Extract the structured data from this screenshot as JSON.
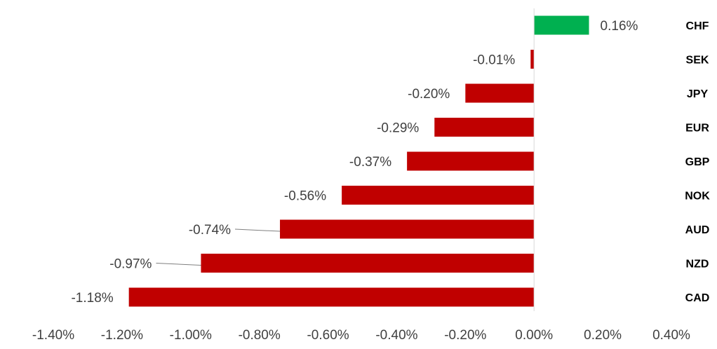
{
  "chart_data": {
    "type": "bar",
    "orientation": "horizontal",
    "categories": [
      "CHF",
      "SEK",
      "JPY",
      "EUR",
      "GBP",
      "NOK",
      "AUD",
      "NZD",
      "CAD"
    ],
    "values": [
      0.16,
      -0.01,
      -0.2,
      -0.29,
      -0.37,
      -0.56,
      -0.74,
      -0.97,
      -1.18
    ],
    "data_labels": [
      "0.16%",
      "-0.01%",
      "-0.20%",
      "-0.29%",
      "-0.37%",
      "-0.56%",
      "-0.74%",
      "-0.97%",
      "-1.18%"
    ],
    "x_ticks": [
      -1.4,
      -1.2,
      -1.0,
      -0.8,
      -0.6,
      -0.4,
      -0.2,
      0.0,
      0.2,
      0.4
    ],
    "x_tick_labels": [
      "-1.40%",
      "-1.20%",
      "-1.00%",
      "-0.80%",
      "-0.60%",
      "-0.40%",
      "-0.20%",
      "0.00%",
      "0.20%",
      "0.40%"
    ],
    "xlim": [
      -1.4,
      0.4
    ],
    "title": "",
    "xlabel": "",
    "ylabel": "",
    "grid": false,
    "legend": "none",
    "colors": {
      "positive": "#00b050",
      "negative": "#c00000",
      "axis": "#d9d9d9",
      "leader": "#7f7f7f"
    }
  }
}
